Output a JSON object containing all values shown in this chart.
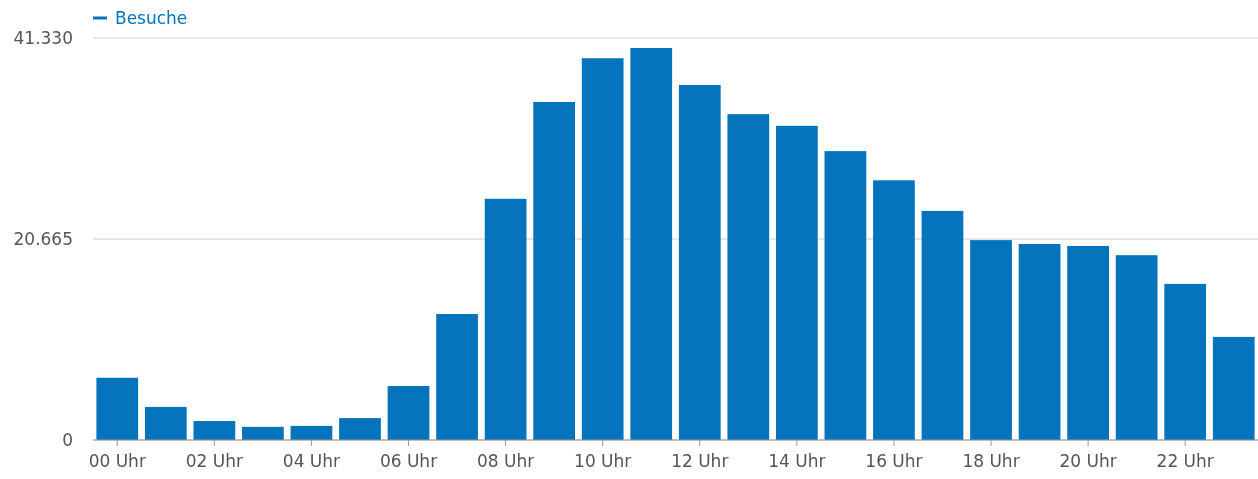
{
  "chart_data": {
    "type": "bar",
    "categories": [
      "00 Uhr",
      null,
      "02 Uhr",
      null,
      "04 Uhr",
      null,
      "06 Uhr",
      null,
      "08 Uhr",
      null,
      "10 Uhr",
      null,
      "12 Uhr",
      null,
      "14 Uhr",
      null,
      "16 Uhr",
      null,
      "18 Uhr",
      null,
      "20 Uhr",
      null,
      "22 Uhr",
      null
    ],
    "series": [
      {
        "name": "Besuche",
        "color": "#0574bd",
        "values": [
          6400,
          3400,
          1950,
          1350,
          1450,
          2250,
          5550,
          12950,
          24800,
          34750,
          39250,
          40300,
          36500,
          33500,
          32300,
          29700,
          26700,
          23550,
          20550,
          20150,
          19950,
          19000,
          16050,
          10600
        ]
      }
    ],
    "ylim": [
      0,
      41330
    ],
    "yticks": [
      0,
      {
        "value": 20665,
        "label": "20.665"
      },
      {
        "value": 41330,
        "label": "41.330"
      }
    ],
    "grid": "y",
    "legend": "top left"
  }
}
